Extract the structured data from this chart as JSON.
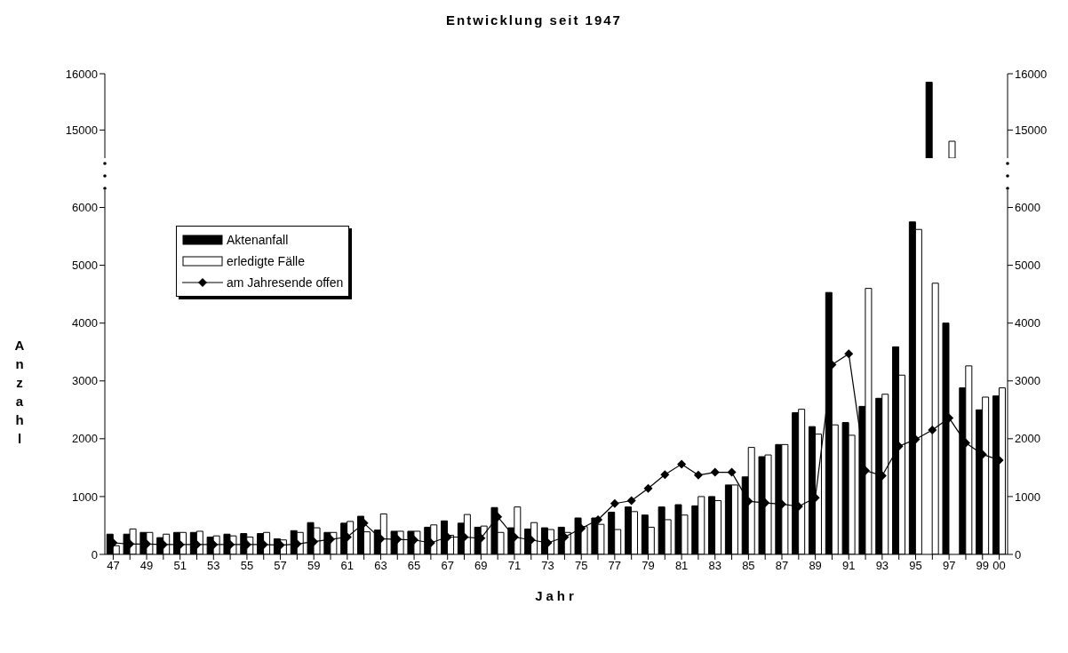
{
  "chart_data": [
    {
      "type": "bar",
      "title": "Entwicklung seit 1947",
      "categories": [
        "47",
        null,
        "49",
        null,
        "51",
        null,
        "53",
        null,
        "55",
        null,
        "57",
        null,
        "59",
        null,
        "61",
        null,
        "63",
        null,
        "65",
        null,
        "67",
        null,
        "69",
        null,
        "71",
        null,
        "73",
        null,
        "75",
        null,
        "77",
        null,
        "79",
        null,
        "81",
        null,
        "83",
        null,
        "85",
        null,
        "87",
        null,
        "89",
        null,
        "91",
        null,
        "93",
        null,
        "95",
        null,
        "97",
        null,
        "99",
        "00"
      ],
      "series": [
        {
          "color": "#000000",
          "values": [
            null,
            null,
            null,
            null,
            null,
            null,
            null,
            null,
            null,
            null,
            null,
            null,
            null,
            null,
            null,
            null,
            null,
            null,
            null,
            null,
            null,
            null,
            null,
            null,
            null,
            null,
            null,
            null,
            null,
            null,
            null,
            null,
            null,
            null,
            null,
            null,
            null,
            null,
            null,
            null,
            null,
            null,
            null,
            null,
            null,
            null,
            null,
            null,
            null,
            15850,
            null,
            null,
            null,
            null
          ]
        },
        {
          "color": "#ffffff",
          "values": [
            null,
            null,
            null,
            null,
            null,
            null,
            null,
            null,
            null,
            null,
            null,
            null,
            null,
            null,
            null,
            null,
            null,
            null,
            null,
            null,
            null,
            null,
            null,
            null,
            null,
            null,
            null,
            null,
            null,
            null,
            null,
            null,
            null,
            null,
            null,
            null,
            null,
            null,
            null,
            null,
            null,
            null,
            null,
            null,
            null,
            null,
            null,
            null,
            null,
            null,
            14800,
            null,
            null,
            null
          ]
        }
      ],
      "ylim": [
        14500,
        16000
      ],
      "yticks": [
        15000,
        16000
      ],
      "y2lim": [
        14500,
        16000
      ],
      "y2ticks": [
        15000,
        16000
      ],
      "tick_labels": "y"
    },
    {
      "type": "bar",
      "xlabel": "Jahr",
      "ylabel": "Anzahl",
      "categories": [
        "47",
        null,
        "49",
        null,
        "51",
        null,
        "53",
        null,
        "55",
        null,
        "57",
        null,
        "59",
        null,
        "61",
        null,
        "63",
        null,
        "65",
        null,
        "67",
        null,
        "69",
        null,
        "71",
        null,
        "73",
        null,
        "75",
        null,
        "77",
        null,
        "79",
        null,
        "81",
        null,
        "83",
        null,
        "85",
        null,
        "87",
        null,
        "89",
        null,
        "91",
        null,
        "93",
        null,
        "95",
        null,
        "97",
        null,
        "99",
        "00"
      ],
      "series": [
        {
          "name": "Aktenanfall",
          "color": "#000000",
          "values": [
            350,
            350,
            380,
            290,
            380,
            380,
            300,
            350,
            360,
            360,
            270,
            410,
            550,
            380,
            540,
            660,
            420,
            400,
            400,
            470,
            580,
            540,
            470,
            810,
            460,
            440,
            460,
            470,
            630,
            630,
            730,
            820,
            680,
            820,
            860,
            840,
            1000,
            1200,
            1340,
            1690,
            1900,
            2450,
            2210,
            4530,
            2280,
            2560,
            2700,
            3590,
            5750,
            null,
            4000,
            2880,
            2500,
            2740
          ]
        },
        {
          "name": "erledigte Fälle",
          "color": "#ffffff",
          "values": [
            150,
            440,
            380,
            350,
            380,
            400,
            320,
            320,
            300,
            380,
            250,
            380,
            460,
            380,
            570,
            390,
            700,
            400,
            400,
            510,
            330,
            690,
            490,
            380,
            820,
            550,
            430,
            380,
            480,
            520,
            430,
            740,
            470,
            600,
            680,
            1000,
            930,
            1200,
            1850,
            1720,
            1900,
            2510,
            2080,
            2240,
            2060,
            4600,
            2770,
            3100,
            5620,
            4690,
            null,
            3260,
            2720,
            2880
          ]
        },
        {
          "type": "line",
          "name": "am Jahresende offen",
          "color": "#000000",
          "marker": "diamond",
          "values": [
            200,
            180,
            180,
            170,
            170,
            170,
            170,
            170,
            170,
            170,
            160,
            180,
            220,
            260,
            300,
            540,
            270,
            260,
            250,
            200,
            300,
            300,
            280,
            650,
            300,
            250,
            200,
            300,
            450,
            600,
            880,
            930,
            1140,
            1380,
            1560,
            1370,
            1420,
            1420,
            920,
            890,
            870,
            830,
            980,
            3280,
            3470,
            1450,
            1360,
            1870,
            1990,
            2150,
            2360,
            1930,
            1730,
            1630
          ]
        }
      ],
      "ylim": [
        0,
        6300
      ],
      "yticks": [
        0,
        1000,
        2000,
        3000,
        4000,
        5000,
        6000
      ],
      "y2lim": [
        0,
        6300
      ],
      "y2ticks": [
        0,
        1000,
        2000,
        3000,
        4000,
        5000,
        6000
      ],
      "legend": "top left"
    }
  ]
}
